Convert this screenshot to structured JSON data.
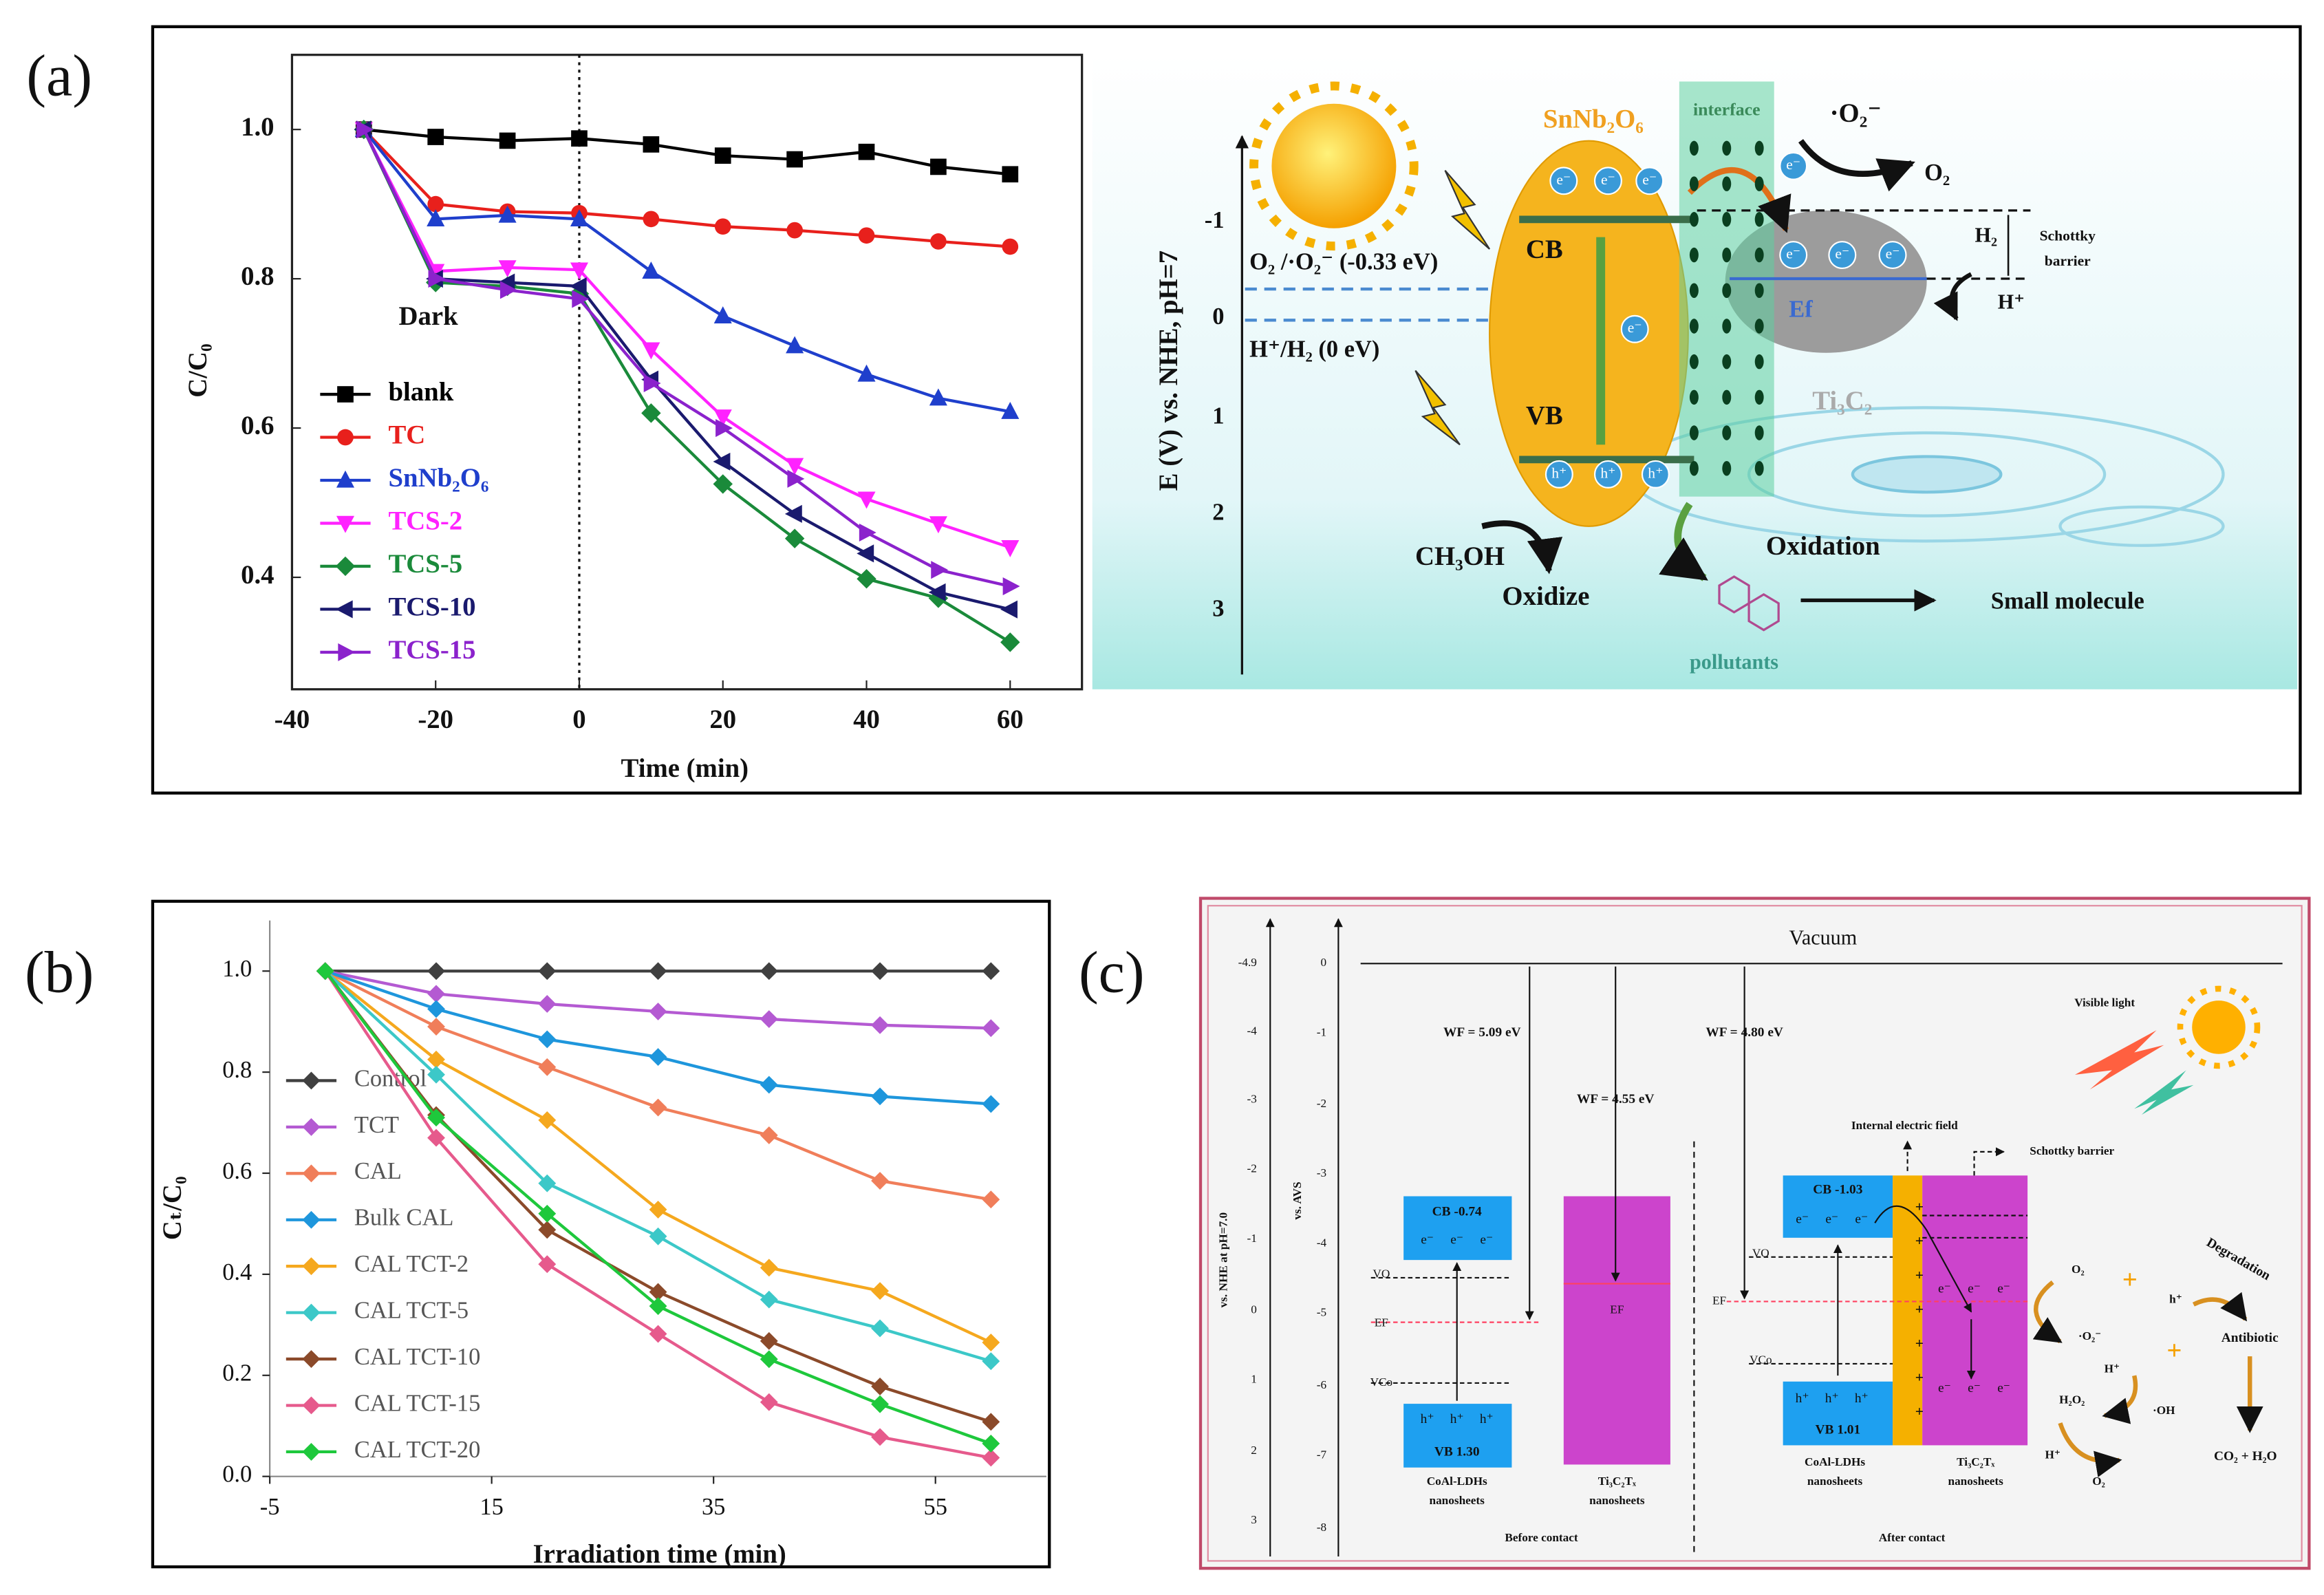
{
  "panel_labels": [
    "(a)",
    "(b)",
    "(c)"
  ],
  "chart_data": [
    {
      "type": "line",
      "xlabel": "Time (min)",
      "ylabel": "C/C₀",
      "x": [
        -30,
        -20,
        -10,
        0,
        10,
        20,
        30,
        40,
        50,
        60
      ],
      "xlim": [
        -40,
        70
      ],
      "xticks": [
        -40,
        -20,
        0,
        20,
        40,
        60
      ],
      "ylim": [
        0.25,
        1.1
      ],
      "yticks": [
        0.4,
        0.6,
        0.8,
        {
          "value": 1,
          "label": "1.0"
        }
      ],
      "divider_x": 0,
      "annotation": "Dark",
      "legend": "lower left",
      "series": [
        {
          "name": "blank",
          "color": "#000000",
          "marker": "square",
          "values": [
            1.0,
            0.99,
            0.985,
            0.988,
            0.98,
            0.965,
            0.96,
            0.97,
            0.95,
            0.94
          ]
        },
        {
          "name": "TC",
          "color": "#e8201c",
          "marker": "circle",
          "values": [
            1.0,
            0.9,
            0.89,
            0.888,
            0.88,
            0.87,
            0.865,
            0.858,
            0.85,
            0.843
          ]
        },
        {
          "name": "SnNb₂O₆",
          "color": "#1f3fcc",
          "marker": "triangle-up",
          "values": [
            1.0,
            0.88,
            0.885,
            0.88,
            0.81,
            0.75,
            0.71,
            0.672,
            0.64,
            0.622
          ]
        },
        {
          "name": "TCS-2",
          "color": "#ff22ff",
          "marker": "triangle-down",
          "values": [
            1.0,
            0.81,
            0.815,
            0.812,
            0.705,
            0.615,
            0.55,
            0.505,
            0.472,
            0.44
          ]
        },
        {
          "name": "TCS-5",
          "color": "#1a8a3a",
          "marker": "diamond",
          "values": [
            1.0,
            0.795,
            0.79,
            0.78,
            0.62,
            0.525,
            0.452,
            0.398,
            0.372,
            0.313
          ]
        },
        {
          "name": "TCS-10",
          "color": "#1a1a6e",
          "marker": "triangle-left",
          "values": [
            1.0,
            0.8,
            0.795,
            0.79,
            0.665,
            0.555,
            0.485,
            0.432,
            0.38,
            0.357
          ]
        },
        {
          "name": "TCS-15",
          "color": "#8b22cc",
          "marker": "triangle-right",
          "values": [
            1.0,
            0.8,
            0.785,
            0.773,
            0.66,
            0.6,
            0.532,
            0.46,
            0.41,
            0.388
          ]
        }
      ]
    },
    {
      "type": "line",
      "xlabel": "Irradiation time (min)",
      "ylabel": "Cₜ/C₀",
      "x": [
        0,
        10,
        20,
        30,
        40,
        50,
        60
      ],
      "xlim": [
        -5,
        65
      ],
      "xticks": [
        -5,
        15,
        35,
        55
      ],
      "ylim": [
        0,
        1.1
      ],
      "yticks": [
        {
          "value": 0,
          "label": "0.0"
        },
        0.2,
        0.4,
        0.6,
        0.8,
        {
          "value": 1,
          "label": "1.0"
        }
      ],
      "legend": "left",
      "series": [
        {
          "name": "Control",
          "color": "#404040",
          "marker": "diamond",
          "values": [
            1,
            1,
            1,
            1,
            1,
            1,
            1
          ]
        },
        {
          "name": "TCT",
          "color": "#b45ad2",
          "marker": "diamond",
          "values": [
            1,
            0.955,
            0.935,
            0.92,
            0.905,
            0.893,
            0.887
          ]
        },
        {
          "name": "CAL",
          "color": "#f07e5a",
          "marker": "diamond",
          "values": [
            1,
            0.89,
            0.81,
            0.73,
            0.675,
            0.585,
            0.548
          ]
        },
        {
          "name": "Bulk CAL",
          "color": "#1e96dc",
          "marker": "diamond",
          "values": [
            1,
            0.925,
            0.865,
            0.83,
            0.775,
            0.752,
            0.737
          ]
        },
        {
          "name": "CAL TCT-2",
          "color": "#f5a81e",
          "marker": "diamond",
          "values": [
            1,
            0.825,
            0.705,
            0.528,
            0.413,
            0.367,
            0.265
          ]
        },
        {
          "name": "CAL TCT-5",
          "color": "#3cc8c8",
          "marker": "diamond",
          "values": [
            1,
            0.795,
            0.58,
            0.475,
            0.35,
            0.293,
            0.228
          ]
        },
        {
          "name": "CAL TCT-10",
          "color": "#8b4a2a",
          "marker": "diamond",
          "values": [
            1,
            0.715,
            0.488,
            0.365,
            0.268,
            0.178,
            0.108
          ]
        },
        {
          "name": "CAL TCT-15",
          "color": "#e65a8c",
          "marker": "diamond",
          "values": [
            1,
            0.67,
            0.42,
            0.282,
            0.147,
            0.078,
            0.037
          ]
        },
        {
          "name": "CAL TCT-20",
          "color": "#1ec83c",
          "marker": "diamond",
          "values": [
            1,
            0.71,
            0.52,
            0.337,
            0.232,
            0.143,
            0.065
          ]
        }
      ]
    }
  ],
  "diagram_a": {
    "axis_label": "E (V) vs. NHE, pH=7",
    "axis_ticks": [
      "-1",
      "0",
      "1",
      "2",
      "3"
    ],
    "semiconductor": "SnNb₂O₆",
    "interface": "interface",
    "metal": "Ti₃C₂",
    "cb": "CB",
    "vb": "VB",
    "fermi": "Ef",
    "superoxide": "·O₂⁻",
    "o2": "O₂",
    "h2": "H₂",
    "schottky": [
      "Schottky",
      "barrier"
    ],
    "proton": "H⁺",
    "couple1": "O₂ /·O₂⁻ (-0.33 eV)",
    "couple2": "H⁺/H₂ (0 eV)",
    "electron": "e⁻",
    "hole": "h⁺",
    "methanol": "CH₃OH",
    "oxidize": "Oxidize",
    "oxidation": "Oxidation",
    "pollutants": "pollutants",
    "product": "Small molecule"
  },
  "diagram_c": {
    "vacuum": "Vacuum",
    "axis1_label": "vs. NHE at pH=7.0",
    "axis1_ticks": [
      "-4.9",
      "-4",
      "-3",
      "-2",
      "-1",
      "0",
      "1",
      "2",
      "3"
    ],
    "axis2_label": "vs. AVS",
    "axis2_ticks": [
      "0",
      "-1",
      "-2",
      "-3",
      "-4",
      "-5",
      "-6",
      "-7",
      "-8"
    ],
    "wf1": "WF = 5.09 eV",
    "wf2": "WF = 4.55 eV",
    "wf3": "WF = 4.80 eV",
    "cb1": "CB  -0.74",
    "vb1": "VB  1.30",
    "cb2": "CB  -1.03",
    "vb2": "VB  1.01",
    "vo": "VO",
    "ef": "EF",
    "vco": "VCo",
    "electron": "e⁻",
    "hole": "h⁺",
    "plus": "+",
    "ldh": [
      "CoAl-LDHs",
      "nanosheets"
    ],
    "mxene": [
      "Ti₃C₂Tₓ",
      "nanosheets"
    ],
    "before": "Before contact",
    "after": "After contact",
    "light": "Visible light",
    "field": "Internal electric field",
    "schottky": "Schottky barrier",
    "o2": "O₂",
    "superoxide": "·O₂⁻",
    "proton": "H⁺",
    "h2o2": "H₂O₂",
    "hydroxyl": "·OH",
    "degradation": "Degradation",
    "antibiotic": "Antibiotic",
    "products": "CO₂ + H₂O"
  }
}
